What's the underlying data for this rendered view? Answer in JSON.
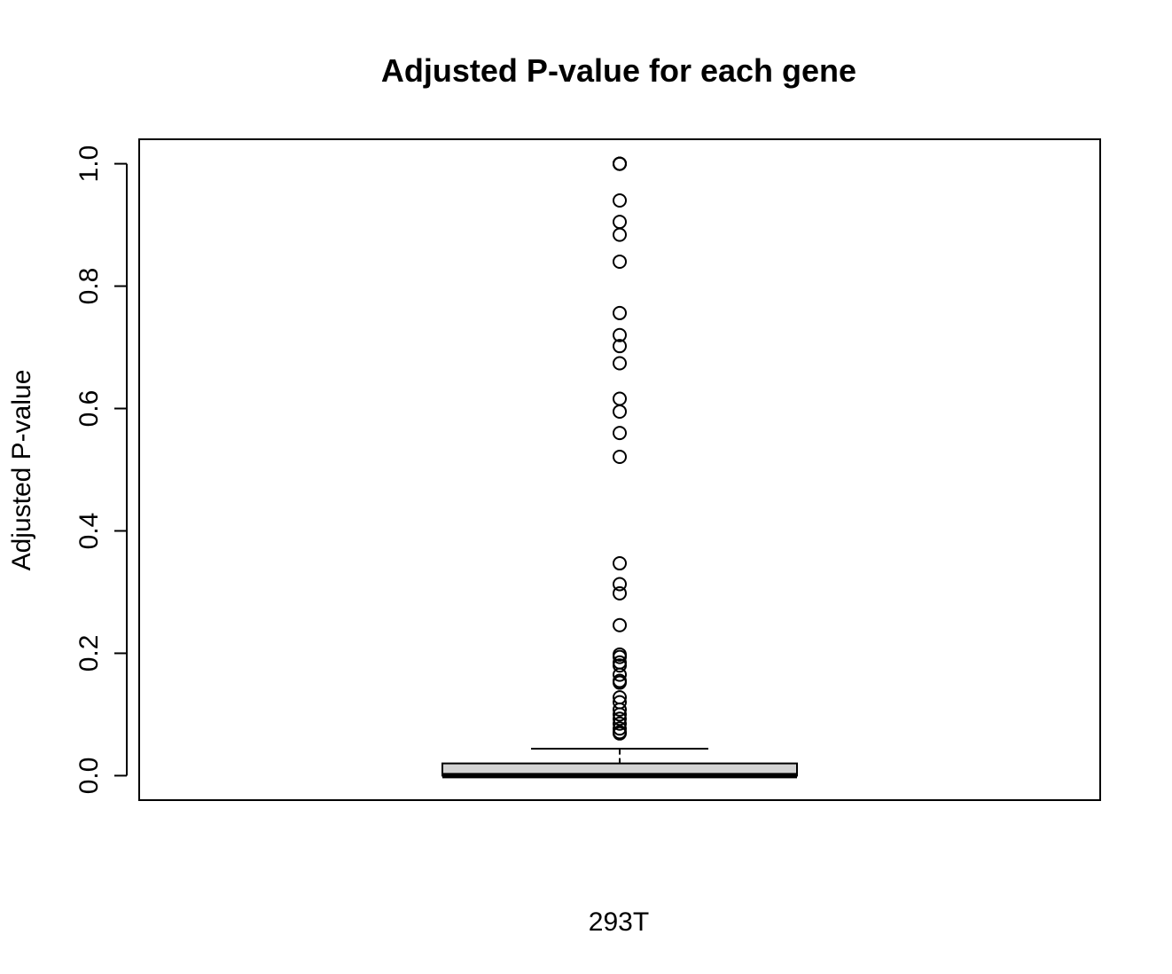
{
  "chart_data": {
    "type": "boxplot",
    "title": "Adjusted P-value for each gene",
    "xlabel": "293T",
    "ylabel": "Adjusted P-value",
    "ylim": [
      -0.04,
      1.04
    ],
    "yticks": [
      0.0,
      0.2,
      0.4,
      0.6,
      0.8,
      1.0
    ],
    "ytick_labels": [
      "0.0",
      "0.2",
      "0.4",
      "0.6",
      "0.8",
      "1.0"
    ],
    "grid": false,
    "series": [
      {
        "category": "293T",
        "box": {
          "min": 0.0,
          "q1": 0.0,
          "median": 0.0,
          "q3": 0.02,
          "whisker_low": 0.0,
          "whisker_high": 0.044
        },
        "outliers": [
          1.0,
          1.0,
          1.0,
          1.0,
          0.94,
          0.905,
          0.884,
          0.84,
          0.756,
          0.72,
          0.702,
          0.674,
          0.616,
          0.595,
          0.56,
          0.521,
          0.347,
          0.313,
          0.298,
          0.246,
          0.198,
          0.194,
          0.185,
          0.18,
          0.165,
          0.155,
          0.152,
          0.128,
          0.12,
          0.108,
          0.1,
          0.093,
          0.085,
          0.077,
          0.071,
          0.069
        ]
      }
    ],
    "colors": {
      "box_fill": "#d3d3d3",
      "stroke": "#000000"
    }
  }
}
